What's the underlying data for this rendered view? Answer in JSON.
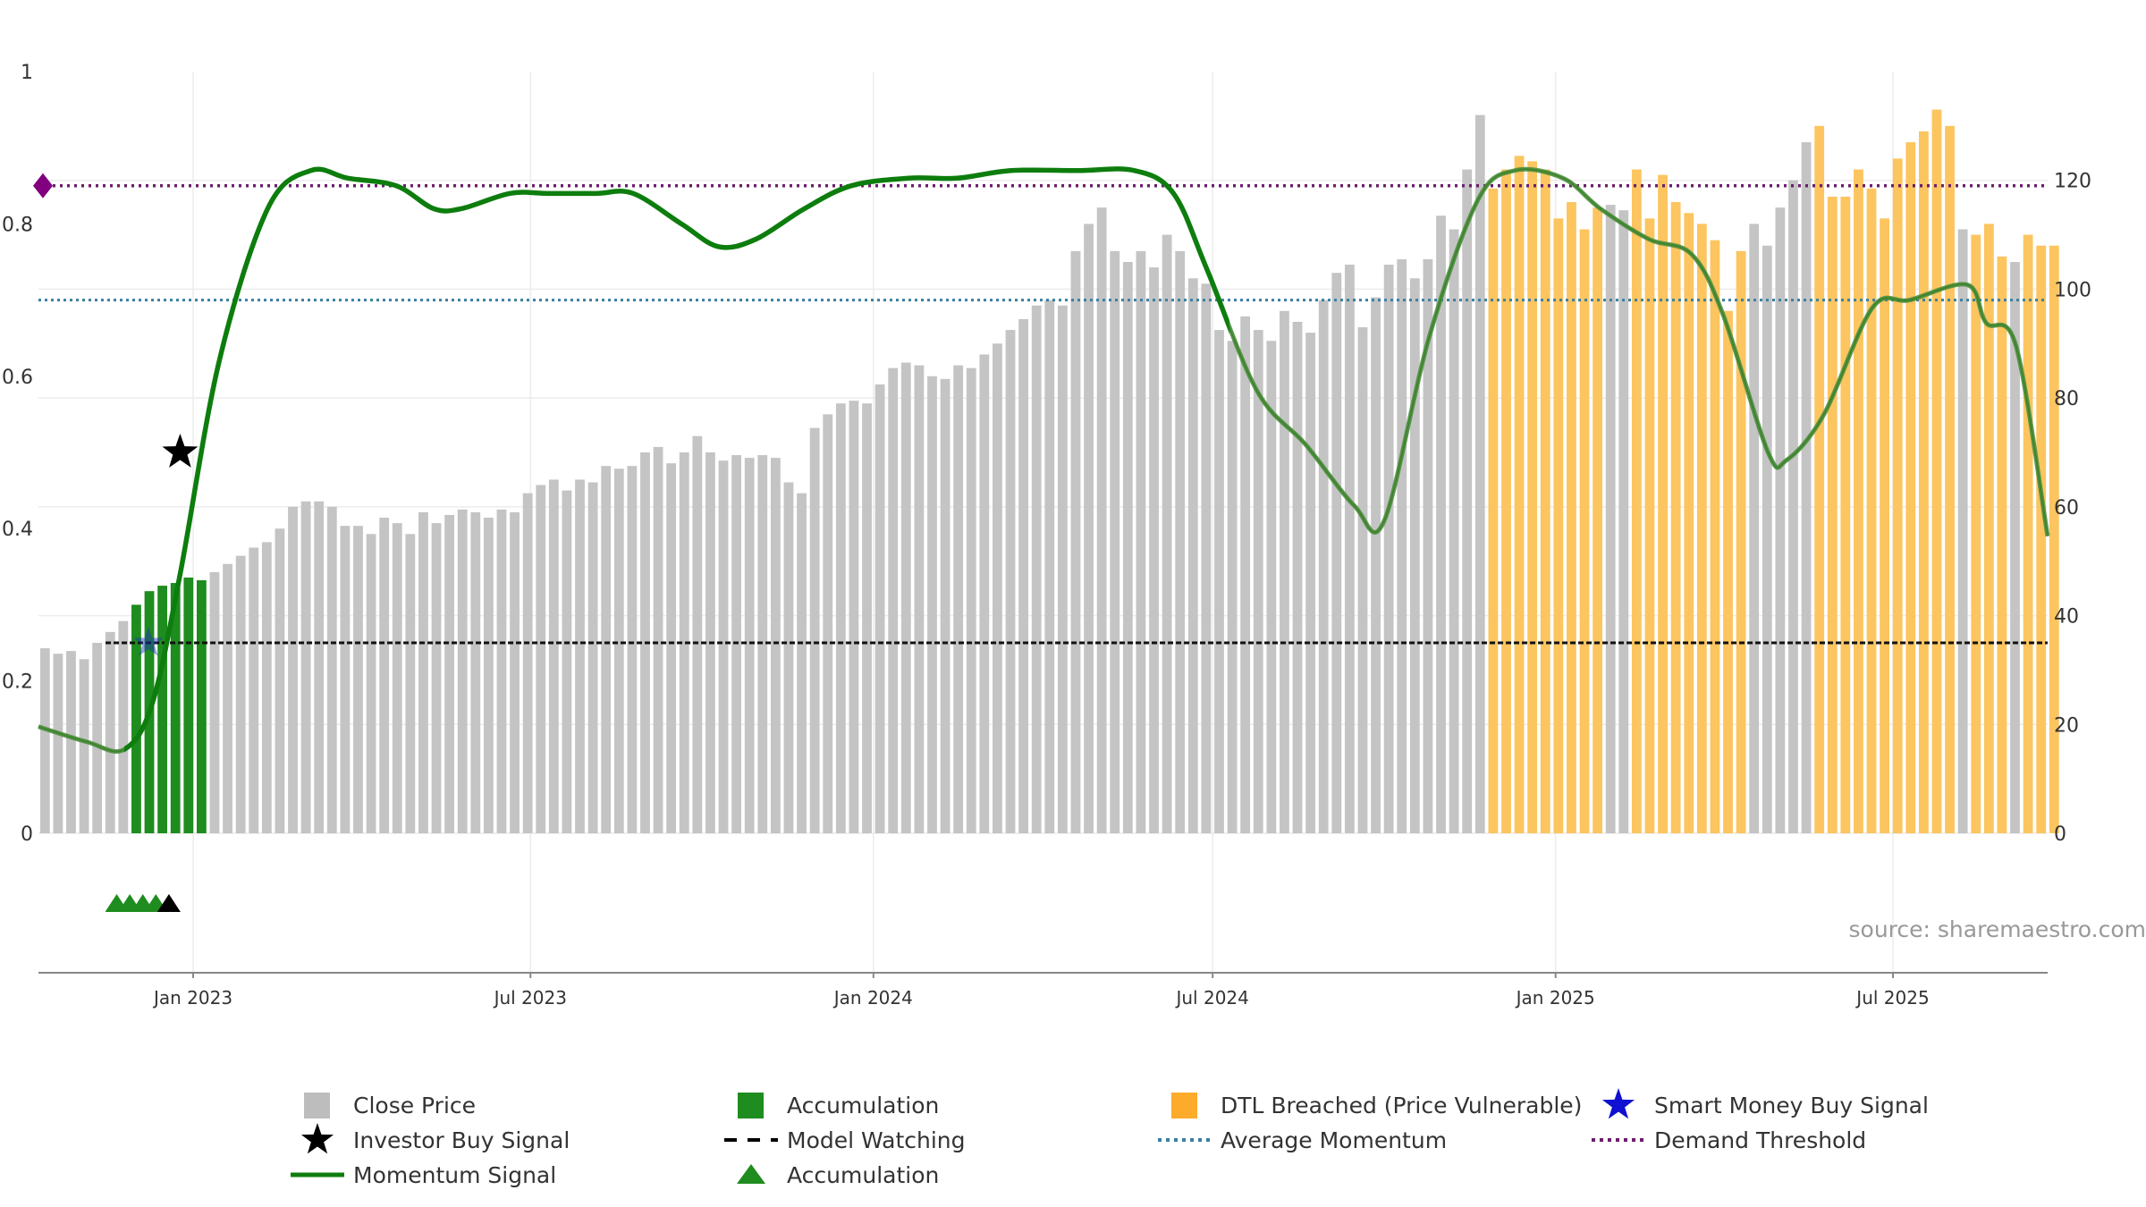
{
  "chart_data": {
    "type": "bar+line",
    "title": "",
    "source_note": "source: sharemaestro.com",
    "left_axis": {
      "range": [
        0,
        1
      ],
      "ticks": [
        "0",
        "0.2",
        "0.4",
        "0.6",
        "0.8",
        "1"
      ],
      "tick_values": [
        0,
        0.2,
        0.4,
        0.6,
        0.8,
        1
      ]
    },
    "right_axis": {
      "range": [
        0,
        140
      ],
      "ticks": [
        "0",
        "20",
        "40",
        "60",
        "80",
        "100",
        "120"
      ],
      "tick_values": [
        0,
        20,
        40,
        60,
        80,
        100,
        120
      ]
    },
    "x_axis": {
      "start": "2022-10-10",
      "end": "2025-09-22",
      "ticks": [
        {
          "label": "Jan 2023",
          "date": "2023-01-01"
        },
        {
          "label": "Jul 2023",
          "date": "2023-07-01"
        },
        {
          "label": "Jan 2024",
          "date": "2024-01-01"
        },
        {
          "label": "Jul 2024",
          "date": "2024-07-01"
        },
        {
          "label": "Jan 2025",
          "date": "2025-01-01"
        },
        {
          "label": "Jul 2025",
          "date": "2025-07-01"
        }
      ]
    },
    "close_price": {
      "name": "Close Price",
      "weekly_start": "2022-10-10",
      "values": [
        34,
        33,
        33.5,
        32,
        35,
        37,
        39,
        42,
        44.5,
        45.5,
        46,
        47,
        46.5,
        48,
        49.5,
        51,
        52.5,
        53.5,
        56,
        60,
        61,
        61,
        60,
        56.5,
        56.5,
        55,
        58,
        57,
        55,
        59,
        57,
        58.5,
        59.5,
        59,
        58,
        59.5,
        59,
        62.5,
        64,
        65,
        63,
        65,
        64.5,
        67.5,
        67,
        67.5,
        70,
        71,
        68,
        70,
        73,
        70,
        68.5,
        69.5,
        69,
        69.5,
        69,
        64.5,
        62.5,
        74.5,
        77,
        79,
        79.5,
        79,
        82.5,
        85.5,
        86.5,
        86,
        84,
        83.5,
        86,
        85.5,
        88,
        90,
        92.5,
        94.5,
        97,
        98,
        97,
        107,
        112,
        115,
        107,
        105,
        107,
        104,
        110,
        107,
        102,
        101,
        92.5,
        90.5,
        95,
        92.5,
        90.5,
        96,
        94,
        92,
        98,
        103,
        104.5,
        93,
        98.5,
        104.5,
        105.5,
        102,
        105.5,
        113.5,
        111,
        122,
        132,
        118.5,
        122,
        124.5,
        123.5,
        122,
        113,
        116,
        111,
        115,
        115.5,
        114.5,
        122,
        113,
        121,
        116,
        114,
        112,
        109,
        96,
        107,
        112,
        108,
        115,
        120,
        127,
        130,
        117,
        117,
        122,
        118.5,
        113,
        124,
        127,
        129,
        133,
        130,
        111,
        110,
        112,
        106,
        105,
        110,
        108,
        108
      ]
    },
    "accumulation_bars": {
      "name": "Accumulation",
      "color": "#1e8c1e",
      "from_index": 7,
      "to_index": 12
    },
    "dtl_breached": {
      "name": "DTL Breached (Price Vulnerable)",
      "color": "#fcc55f",
      "ranges": [
        [
          111,
          119
        ],
        [
          122,
          130
        ],
        [
          136,
          146
        ],
        [
          148,
          150
        ],
        [
          152,
          157
        ]
      ]
    },
    "momentum_signal": {
      "name": "Momentum Signal",
      "color": "#0d7d0d",
      "dates": [
        "2022-10-10",
        "2022-11-05",
        "2022-11-25",
        "2022-12-10",
        "2022-12-25",
        "2023-01-15",
        "2023-02-10",
        "2023-03-05",
        "2023-03-25",
        "2023-04-20",
        "2023-05-10",
        "2023-05-25",
        "2023-06-20",
        "2023-07-10",
        "2023-08-05",
        "2023-08-25",
        "2023-09-20",
        "2023-10-10",
        "2023-10-30",
        "2023-11-25",
        "2023-12-20",
        "2024-01-20",
        "2024-02-15",
        "2024-03-15",
        "2024-04-20",
        "2024-05-20",
        "2024-06-10",
        "2024-06-28",
        "2024-07-25",
        "2024-08-20",
        "2024-09-15",
        "2024-10-01",
        "2024-10-25",
        "2024-11-20",
        "2024-12-10",
        "2025-01-05",
        "2025-01-25",
        "2025-02-20",
        "2025-03-15",
        "2025-04-01",
        "2025-04-25",
        "2025-05-05",
        "2025-05-25",
        "2025-06-20",
        "2025-07-10",
        "2025-08-10",
        "2025-08-20",
        "2025-09-05",
        "2025-09-22"
      ],
      "values": [
        0.14,
        0.12,
        0.11,
        0.17,
        0.34,
        0.62,
        0.82,
        0.87,
        0.86,
        0.85,
        0.82,
        0.82,
        0.84,
        0.84,
        0.84,
        0.84,
        0.8,
        0.77,
        0.78,
        0.82,
        0.85,
        0.86,
        0.86,
        0.87,
        0.87,
        0.87,
        0.84,
        0.74,
        0.58,
        0.51,
        0.43,
        0.41,
        0.65,
        0.83,
        0.87,
        0.86,
        0.82,
        0.78,
        0.76,
        0.68,
        0.5,
        0.49,
        0.55,
        0.69,
        0.7,
        0.72,
        0.67,
        0.64,
        0.39
      ],
      "faded_ranges": [
        [
          "2022-10-10",
          "2022-11-25"
        ],
        [
          "2024-07-10",
          "2025-09-22"
        ]
      ]
    },
    "model_watching": {
      "name": "Model Watching",
      "value": 0.25,
      "from": "2022-11-15",
      "to": "2025-09-22"
    },
    "average_momentum": {
      "name": "Average Momentum",
      "value": 0.7,
      "color": "#3a7fa0"
    },
    "demand_threshold": {
      "name": "Demand Threshold",
      "value": 0.85,
      "color": "#6b1f6b"
    },
    "investor_buy_signal": {
      "name": "Investor Buy Signal",
      "date": "2022-12-25",
      "value": 0.5
    },
    "smart_money_buy_signal": {
      "name": "Smart Money Buy Signal",
      "date": "2022-12-08",
      "value": 0.25,
      "color": "#1f2fc4"
    },
    "accumulation_markers": {
      "name": "Accumulation",
      "green_dates": [
        "2022-11-21",
        "2022-11-28",
        "2022-12-05",
        "2022-12-12"
      ],
      "black_dates": [
        "2022-12-19"
      ]
    },
    "legend": [
      {
        "label": "Close Price",
        "kind": "square",
        "color": "#bdbdbd"
      },
      {
        "label": "Accumulation",
        "kind": "square",
        "color": "#1e8c1e"
      },
      {
        "label": "DTL Breached (Price Vulnerable)",
        "kind": "square",
        "color": "#fcab2a"
      },
      {
        "label": "Smart Money Buy Signal",
        "kind": "star",
        "color": "#1010d0"
      },
      {
        "label": "Investor Buy Signal",
        "kind": "star",
        "color": "#000000"
      },
      {
        "label": "Model Watching",
        "kind": "dash",
        "color": "#000000"
      },
      {
        "label": "Average Momentum",
        "kind": "dot",
        "color": "#3a7fa0"
      },
      {
        "label": "Demand Threshold",
        "kind": "dot",
        "color": "#6b1f6b"
      },
      {
        "label": "Momentum Signal",
        "kind": "line",
        "color": "#0d7d0d"
      },
      {
        "label": "Accumulation",
        "kind": "triangle",
        "color": "#1e8c1e"
      }
    ]
  }
}
